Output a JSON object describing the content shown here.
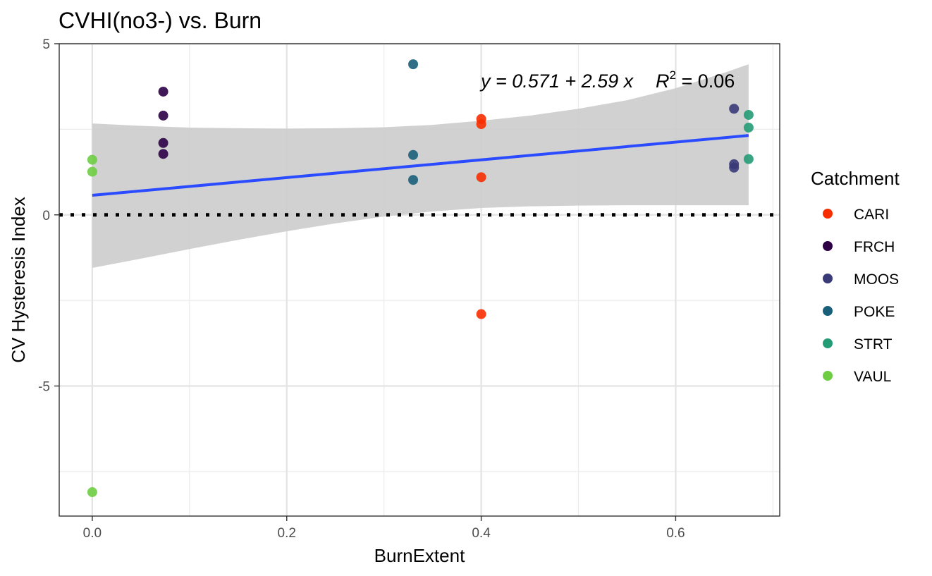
{
  "chart_data": {
    "type": "scatter",
    "title": "CVHI(no3-) vs. Burn",
    "xlabel": "BurnExtent",
    "ylabel": "CV Hysteresis Index",
    "xlim": [
      -0.034,
      0.707
    ],
    "ylim": [
      -8.8,
      5.0
    ],
    "x_ticks": [
      0.0,
      0.2,
      0.4,
      0.6
    ],
    "x_tick_labels": [
      "0.0",
      "0.2",
      "0.4",
      "0.6"
    ],
    "y_ticks": [
      -5,
      0,
      5
    ],
    "y_tick_labels": [
      "-5",
      "0",
      "5"
    ],
    "grid": true,
    "reference_line": {
      "y": 0,
      "style": "dotted"
    },
    "legend": {
      "title": "Catchment",
      "position": "right",
      "entries": [
        {
          "name": "CARI",
          "color": "#f72e00"
        },
        {
          "name": "FRCH",
          "color": "#2d0046"
        },
        {
          "name": "MOOS",
          "color": "#3a3a78"
        },
        {
          "name": "POKE",
          "color": "#1a5f7a"
        },
        {
          "name": "STRT",
          "color": "#239b74"
        },
        {
          "name": "VAUL",
          "color": "#6ecd43"
        }
      ]
    },
    "series": [
      {
        "name": "CARI",
        "color": "#f72e00",
        "points": [
          [
            0.4,
            2.8
          ],
          [
            0.4,
            2.65
          ],
          [
            0.4,
            1.1
          ],
          [
            0.4,
            -2.9
          ]
        ]
      },
      {
        "name": "FRCH",
        "color": "#2d0046",
        "points": [
          [
            0.073,
            3.6
          ],
          [
            0.073,
            2.9
          ],
          [
            0.073,
            2.1
          ],
          [
            0.073,
            1.78
          ]
        ]
      },
      {
        "name": "MOOS",
        "color": "#3a3a78",
        "points": [
          [
            0.66,
            3.1
          ],
          [
            0.66,
            1.48
          ],
          [
            0.66,
            1.38
          ]
        ]
      },
      {
        "name": "POKE",
        "color": "#1a5f7a",
        "points": [
          [
            0.33,
            4.4
          ],
          [
            0.33,
            1.75
          ],
          [
            0.33,
            1.02
          ]
        ]
      },
      {
        "name": "STRT",
        "color": "#239b74",
        "points": [
          [
            0.675,
            2.92
          ],
          [
            0.675,
            2.55
          ],
          [
            0.675,
            1.63
          ]
        ]
      },
      {
        "name": "VAUL",
        "color": "#6ecd43",
        "points": [
          [
            0.0,
            1.61
          ],
          [
            0.0,
            1.26
          ],
          [
            0.0,
            -8.1
          ]
        ]
      }
    ],
    "regression": {
      "intercept": 0.571,
      "slope": 2.59,
      "x_range": [
        0.0,
        0.675
      ],
      "color": "#2a4bff",
      "confidence_band": {
        "color": "#cccccc",
        "x": [
          0.0,
          0.05,
          0.1,
          0.15,
          0.2,
          0.25,
          0.3,
          0.35,
          0.4,
          0.45,
          0.5,
          0.55,
          0.6,
          0.65,
          0.675
        ],
        "upper": [
          2.67,
          2.6,
          2.55,
          2.53,
          2.52,
          2.53,
          2.56,
          2.63,
          2.75,
          2.9,
          3.1,
          3.35,
          3.7,
          4.15,
          4.4
        ],
        "lower": [
          -1.55,
          -1.28,
          -1.0,
          -0.73,
          -0.48,
          -0.25,
          -0.05,
          0.1,
          0.2,
          0.25,
          0.27,
          0.28,
          0.28,
          0.28,
          0.28
        ]
      }
    },
    "annotation": {
      "equation": "y = 0.571 + 2.59 x",
      "r_squared_label": "R",
      "r_squared_exponent": "2",
      "r_squared_value": " = 0.06"
    }
  }
}
